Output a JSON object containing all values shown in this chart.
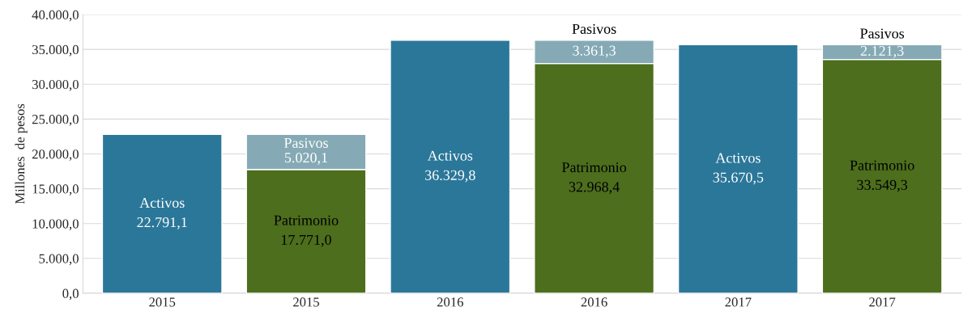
{
  "chart_data": {
    "type": "bar",
    "stacked": true,
    "ylabel": "Millones  de pesos",
    "categories": [
      "2015",
      "2015",
      "2016",
      "2016",
      "2017",
      "2017"
    ],
    "series": [
      {
        "name": "Activos",
        "color": "#2b7799",
        "values": [
          22791.1,
          null,
          36329.8,
          null,
          35670.5,
          null
        ],
        "value_labels": [
          "22.791,1",
          null,
          "36.329,8",
          null,
          "35.670,5",
          null
        ]
      },
      {
        "name": "Patrimonio",
        "color": "#4d6e1c",
        "values": [
          null,
          17771.0,
          null,
          32968.4,
          null,
          33549.3
        ],
        "value_labels": [
          null,
          "17.771,0",
          null,
          "32.968,4",
          null,
          "33.549,3"
        ]
      },
      {
        "name": "Pasivos",
        "color": "#85aab5",
        "values": [
          null,
          5020.1,
          null,
          3361.3,
          null,
          2121.3
        ],
        "value_labels": [
          null,
          "5.020,1",
          null,
          "3.361,3",
          null,
          "2.121,3"
        ]
      }
    ],
    "ylim": [
      0,
      40000
    ],
    "yticks": [
      {
        "value": 0,
        "label": "0,0"
      },
      {
        "value": 5000,
        "label": "5.000,0"
      },
      {
        "value": 10000,
        "label": "10.000,0"
      },
      {
        "value": 15000,
        "label": "15.000,0"
      },
      {
        "value": 20000,
        "label": "20.000,0"
      },
      {
        "value": 25000,
        "label": "25.000,0"
      },
      {
        "value": 30000,
        "label": "30.000,0"
      },
      {
        "value": 35000,
        "label": "35.000,0"
      },
      {
        "value": 40000,
        "label": "40.000,0"
      }
    ],
    "grid": "y",
    "legend": false
  }
}
